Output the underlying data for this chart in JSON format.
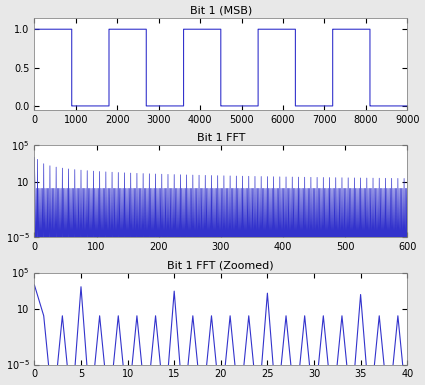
{
  "title1": "Bit 1 (MSB)",
  "title2": "Bit 1 FFT",
  "title3": "Bit 1 FFT (Zoomed)",
  "line_color": "#3333cc",
  "bg_color": "#e8e8e8",
  "plot_bg": "#ffffff",
  "N": 9000,
  "freq": 5,
  "xlim1": [
    0,
    9000
  ],
  "ylim1": [
    -0.05,
    1.15
  ],
  "yticks1": [
    0,
    0.5,
    1
  ],
  "xticks1": [
    0,
    1000,
    2000,
    3000,
    4000,
    5000,
    6000,
    7000,
    8000,
    9000
  ],
  "xlim2": [
    0,
    600
  ],
  "ylim2": [
    1e-05,
    100000.0
  ],
  "yticks2": [
    1e-05,
    10,
    100000.0
  ],
  "xticks2": [
    0,
    100,
    200,
    300,
    400,
    500,
    600
  ],
  "xlim3": [
    0,
    40
  ],
  "ylim3": [
    1e-05,
    100000.0
  ],
  "yticks3": [
    1e-05,
    10,
    100000.0
  ],
  "xticks3": [
    0,
    5,
    10,
    15,
    20,
    25,
    30,
    35,
    40
  ],
  "title_fontsize": 8,
  "tick_fontsize": 7,
  "linewidth1": 0.8,
  "linewidth2": 0.5,
  "linewidth3": 0.8
}
